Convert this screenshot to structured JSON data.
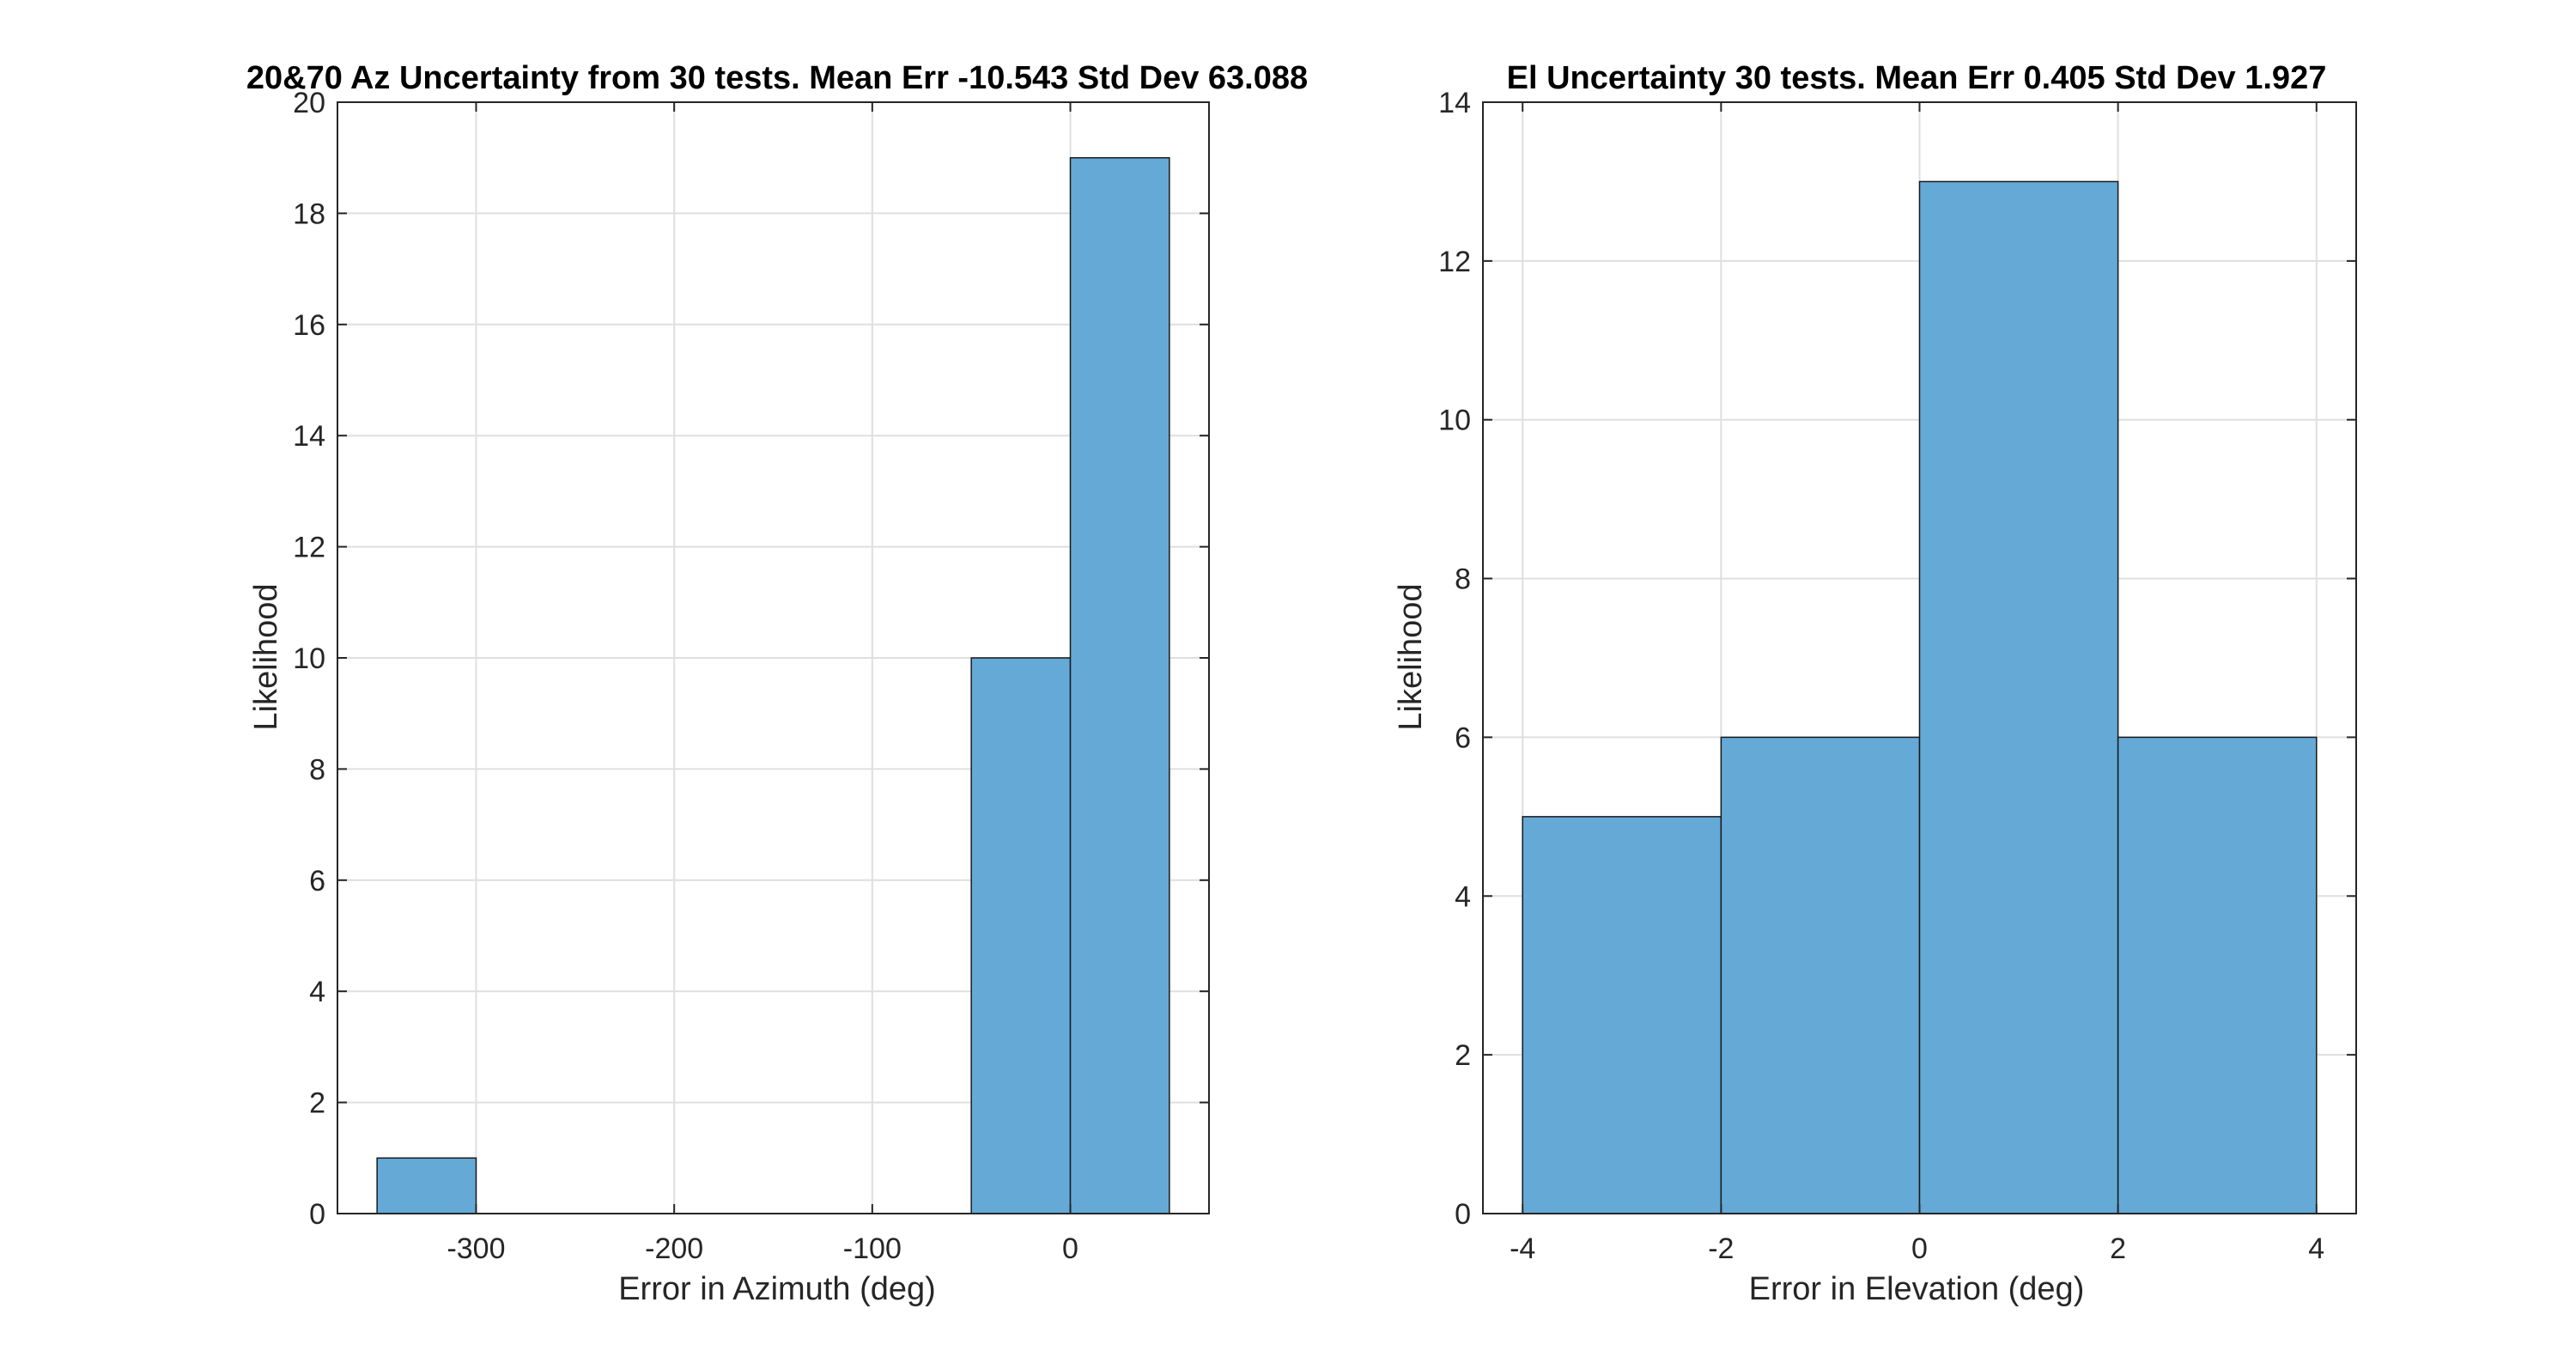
{
  "chart_data": [
    {
      "type": "histogram",
      "title": "20&70 Az Uncertainty from 30 tests. Mean Err -10.543 Std Dev 63.088",
      "xlabel": "Error in Azimuth (deg)",
      "ylabel": "Likelihood",
      "xlim": [
        -370,
        70
      ],
      "ylim": [
        0,
        20
      ],
      "xticks": [
        -300,
        -200,
        -100,
        0
      ],
      "yticks": [
        0,
        2,
        4,
        6,
        8,
        10,
        12,
        14,
        16,
        18,
        20
      ],
      "bins": [
        {
          "x0": -350,
          "x1": -300,
          "value": 1
        },
        {
          "x0": -300,
          "x1": -250,
          "value": 0
        },
        {
          "x0": -250,
          "x1": -200,
          "value": 0
        },
        {
          "x0": -200,
          "x1": -150,
          "value": 0
        },
        {
          "x0": -150,
          "x1": -100,
          "value": 0
        },
        {
          "x0": -100,
          "x1": -50,
          "value": 0
        },
        {
          "x0": -50,
          "x1": 0,
          "value": 10
        },
        {
          "x0": 0,
          "x1": 50,
          "value": 19
        }
      ],
      "grid": true,
      "bar_color": "#65a9d7"
    },
    {
      "type": "histogram",
      "title": "El Uncertainty 30 tests. Mean Err 0.405 Std Dev 1.927",
      "xlabel": "Error in Elevation (deg)",
      "ylabel": "Likelihood",
      "xlim": [
        -4.4,
        4.4
      ],
      "ylim": [
        0,
        14
      ],
      "xticks": [
        -4,
        -2,
        0,
        2,
        4
      ],
      "yticks": [
        0,
        2,
        4,
        6,
        8,
        10,
        12,
        14
      ],
      "bins": [
        {
          "x0": -4,
          "x1": -2,
          "value": 5
        },
        {
          "x0": -2,
          "x1": 0,
          "value": 6
        },
        {
          "x0": 0,
          "x1": 2,
          "value": 13
        },
        {
          "x0": 2,
          "x1": 4,
          "value": 6
        }
      ],
      "grid": true,
      "bar_color": "#65a9d7"
    }
  ]
}
